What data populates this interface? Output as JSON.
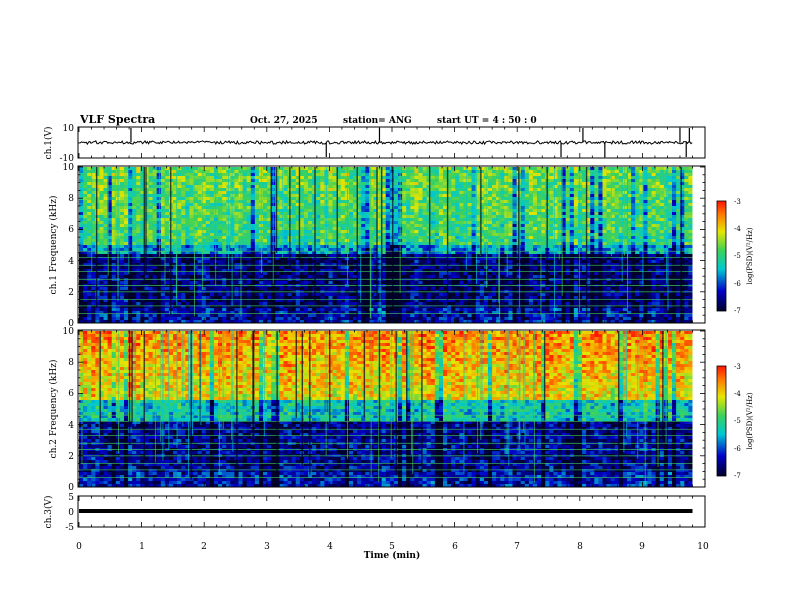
{
  "header": {
    "title": "VLF Spectra",
    "date": "Oct. 27, 2025",
    "station": "station= ANG",
    "start": "start  UT  =   4 : 50 : 0"
  },
  "chart_data": [
    {
      "type": "line",
      "name": "ch1-waveform",
      "ylabel": "ch.1(V)",
      "ylim": [
        -10,
        10
      ],
      "yticks": [
        "10",
        "-10"
      ],
      "xlim": [
        0,
        10
      ],
      "baseline": 0,
      "spikes_at_min": [
        0.83,
        3.95,
        4.8,
        7.7,
        8.05,
        8.4,
        9.6,
        9.7,
        9.75
      ]
    },
    {
      "type": "heatmap",
      "name": "ch1-spectrogram",
      "ylabel": "ch.1 Frequency (kHz)",
      "ylim": [
        0,
        10
      ],
      "yticks": [
        "0",
        "2",
        "4",
        "6",
        "8",
        "10"
      ],
      "xlim": [
        0,
        9.8
      ],
      "intensity_profile": "blue/dark below 4.5 kHz, green-yellow above 5 kHz",
      "colorbar": {
        "label": "log(PSD)(V²/Hz)",
        "range": [
          -7,
          -3
        ],
        "ticks": [
          "-3",
          "-4",
          "-5",
          "-6",
          "-7"
        ]
      }
    },
    {
      "type": "heatmap",
      "name": "ch2-spectrogram",
      "ylabel": "ch.2 Frequency (kHz)",
      "ylim": [
        0,
        10
      ],
      "yticks": [
        "0",
        "2",
        "4",
        "6",
        "8",
        "10"
      ],
      "xlim": [
        0,
        9.8
      ],
      "intensity_profile": "blue/dark below 4 kHz, yellow-red above 5.5 kHz",
      "colorbar": {
        "label": "log(PSD)(V²/Hz)",
        "range": [
          -7,
          -3
        ],
        "ticks": [
          "-3",
          "-4",
          "-5",
          "-6",
          "-7"
        ]
      }
    },
    {
      "type": "line",
      "name": "ch3-waveform",
      "ylabel": "ch.3(V)",
      "ylim": [
        -5,
        5
      ],
      "yticks": [
        "5",
        "0",
        "-5"
      ],
      "xlim": [
        0,
        10
      ],
      "value": -1.5
    }
  ],
  "xaxis": {
    "label": "Time  (min)",
    "ticks": [
      "0",
      "1",
      "2",
      "3",
      "4",
      "5",
      "6",
      "7",
      "8",
      "9",
      "10"
    ]
  },
  "colors": {
    "dark": "#000033",
    "blue": "#0000cc",
    "cyan": "#00c8d2",
    "green": "#40d060",
    "yellow": "#e6e600",
    "red": "#ff2200"
  }
}
